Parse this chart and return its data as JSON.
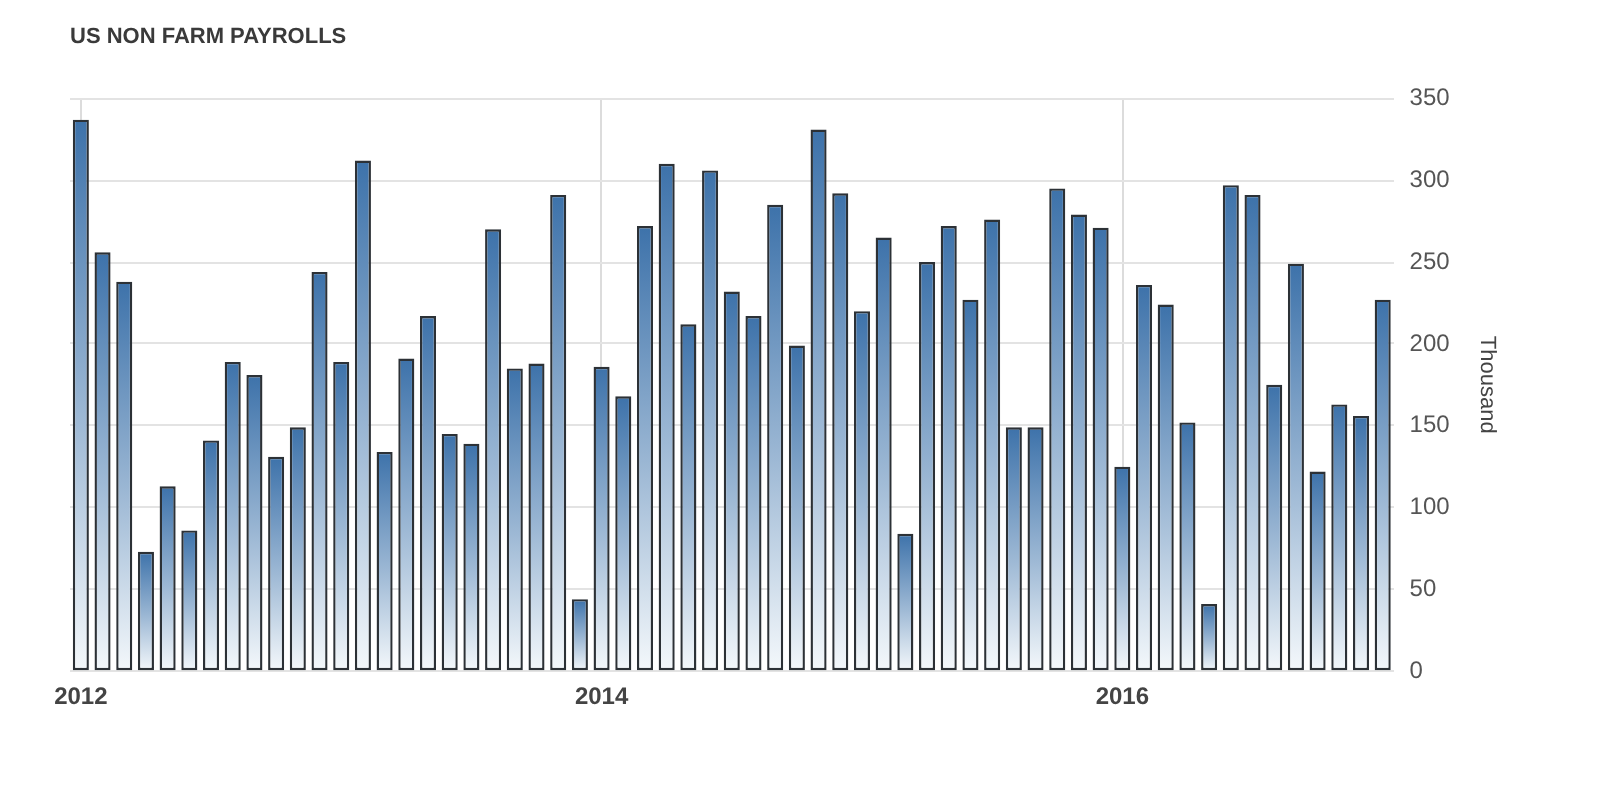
{
  "chart_data": {
    "type": "bar",
    "title": "US NON FARM PAYROLLS",
    "ylabel": "Thousand",
    "categories": [
      "2012",
      null,
      null,
      null,
      null,
      null,
      null,
      null,
      null,
      null,
      null,
      null,
      null,
      null,
      null,
      null,
      null,
      null,
      null,
      null,
      null,
      null,
      null,
      null,
      "2014",
      null,
      null,
      null,
      null,
      null,
      null,
      null,
      null,
      null,
      null,
      null,
      null,
      null,
      null,
      null,
      null,
      null,
      null,
      null,
      null,
      null,
      null,
      null,
      "2016",
      null,
      null,
      null,
      null,
      null,
      null,
      null,
      null,
      null,
      null,
      null,
      null
    ],
    "values": [
      337,
      256,
      238,
      73,
      113,
      86,
      141,
      189,
      181,
      131,
      149,
      244,
      189,
      312,
      134,
      191,
      217,
      145,
      139,
      270,
      185,
      188,
      291,
      44,
      186,
      168,
      272,
      310,
      212,
      306,
      232,
      217,
      285,
      199,
      331,
      292,
      220,
      265,
      84,
      250,
      272,
      227,
      276,
      149,
      149,
      295,
      279,
      271,
      125,
      236,
      224,
      152,
      41,
      297,
      291,
      175,
      249,
      122,
      163,
      156,
      227
    ],
    "color": "#3d72aa",
    "ylim": [
      0,
      350
    ],
    "yticks": [
      0,
      50,
      100,
      150,
      200,
      250,
      300,
      350
    ],
    "grid": true
  }
}
